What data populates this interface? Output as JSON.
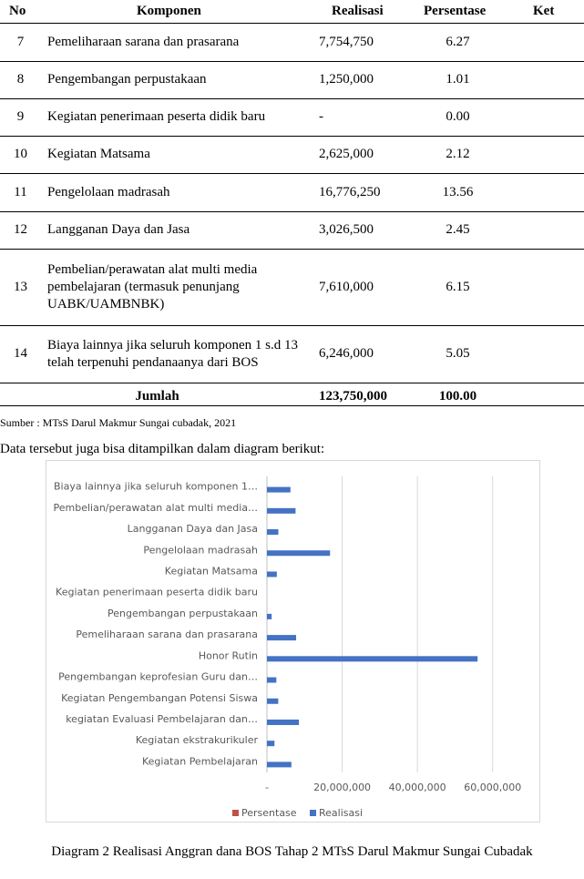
{
  "table": {
    "header": [
      "No",
      "Komponen",
      "Realisasi",
      "Persentase",
      "Ket"
    ],
    "rows": [
      [
        "7",
        "Pemeliharaan sarana dan prasarana",
        "7,754,750",
        "6.27"
      ],
      [
        "8",
        "Pengembangan perpustakaan",
        "1,250,000",
        "1.01"
      ],
      [
        "9",
        "Kegiatan penerimaan peserta didik baru",
        "-",
        "0.00"
      ],
      [
        "10",
        "Kegiatan Matsama",
        "2,625,000",
        "2.12"
      ],
      [
        "11",
        "Pengelolaan madrasah",
        "16,776,250",
        "13.56"
      ],
      [
        "12",
        "Langganan Daya dan Jasa",
        "3,026,500",
        "2.45"
      ],
      [
        "13",
        "Pembelian/perawatan alat multi media pembelajaran (termasuk penunjang UABK/UAMBNBK)",
        "7,610,000",
        "6.15"
      ],
      [
        "14",
        "Biaya lainnya jika seluruh komponen 1 s.d 13 telah terpenuhi pendanaanya dari BOS",
        "6,246,000",
        "5.05"
      ]
    ],
    "total": [
      "Jumlah",
      "123,750,000",
      "100.00"
    ]
  },
  "source": "Sumber : MTsS Darul Makmur Sungai cubadak, 2021",
  "intro": "Data tersebut juga bisa ditampilkan dalam diagram berikut:",
  "chart_data": {
    "type": "bar",
    "orientation": "horizontal",
    "categories": [
      "Kegiatan Pembelajaran",
      "Kegiatan ekstrakurikuler",
      "kegiatan Evaluasi Pembelajaran dan…",
      "Kegiatan Pengembangan Potensi Siswa",
      "Pengembangan keprofesian Guru dan…",
      "Honor Rutin",
      "Pemeliharaan sarana dan prasarana",
      "Pengembangan perpustakaan",
      "Kegiatan penerimaan peserta didik baru",
      "Kegiatan Matsama",
      "Pengelolaan madrasah",
      "Langganan Daya dan Jasa",
      "Pembelian/perawatan alat multi media…",
      "Biaya lainnya jika seluruh komponen 1…"
    ],
    "series": [
      {
        "name": "Persentase",
        "color": "#c0504d",
        "values": [
          5.25,
          1.62,
          6.87,
          2.42,
          2.02,
          45.25,
          6.27,
          1.01,
          0,
          2.12,
          13.56,
          2.45,
          6.15,
          5.05
        ]
      },
      {
        "name": "Realisasi",
        "color": "#4472c4",
        "values": [
          6500000,
          2000000,
          8500000,
          3000000,
          2500000,
          56000000,
          7754750,
          1250000,
          0,
          2625000,
          16776250,
          3026500,
          7610000,
          6246000
        ]
      }
    ],
    "xlim": [
      0,
      70000000
    ],
    "xticks": [
      {
        "value": 0,
        "label": "-"
      },
      {
        "value": 20000000,
        "label": "20,000,000"
      },
      {
        "value": 40000000,
        "label": "40,000,000"
      },
      {
        "value": 60000000,
        "label": "60,000,000"
      }
    ],
    "grid": true,
    "legend": "bottom"
  },
  "caption": "Diagram 2 Realisasi Anggran dana BOS Tahap 2 MTsS Darul Makmur Sungai Cubadak"
}
